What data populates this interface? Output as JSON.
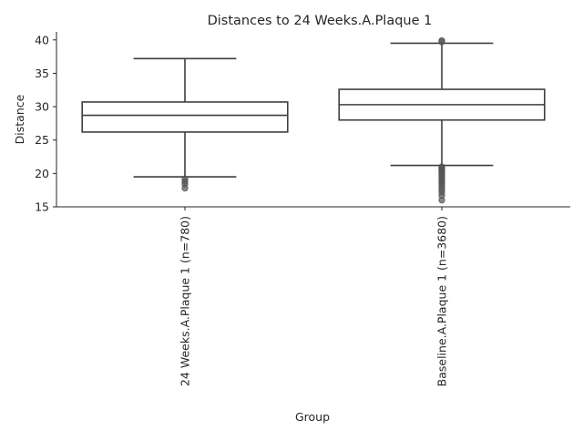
{
  "chart_data": {
    "type": "box",
    "title": "Distances to 24 Weeks.A.Plaque 1",
    "xlabel": "Group",
    "ylabel": "Distance",
    "ylim": [
      15,
      41.2
    ],
    "yticks": [
      15,
      20,
      25,
      30,
      35,
      40
    ],
    "grid": false,
    "legend": "none",
    "categories": [
      "24 Weeks.A.Plaque 1 (n=780)",
      "Baseline.A.Plaque 1 (n=3680)"
    ],
    "boxes": [
      {
        "label": "24 Weeks.A.Plaque 1 (n=780)",
        "whisker_low": 19.5,
        "q1": 26.2,
        "median": 28.7,
        "q3": 30.7,
        "whisker_high": 37.2,
        "outliers": [
          19.2,
          18.8,
          18.4,
          17.8
        ]
      },
      {
        "label": "Baseline.A.Plaque 1 (n=3680)",
        "whisker_low": 21.2,
        "q1": 28.0,
        "median": 30.3,
        "q3": 32.6,
        "whisker_high": 39.5,
        "outliers": [
          39.7,
          39.9,
          21.0,
          20.8,
          20.6,
          20.4,
          20.2,
          19.9,
          19.6,
          19.3,
          19.0,
          18.7,
          18.4,
          18.0,
          17.6,
          17.2,
          16.7,
          16.0
        ]
      }
    ],
    "colors": {
      "box_fill": "#ffffff",
      "box_edge": "#3f3f3f",
      "outlier": "#555555",
      "axis": "#262626"
    }
  }
}
